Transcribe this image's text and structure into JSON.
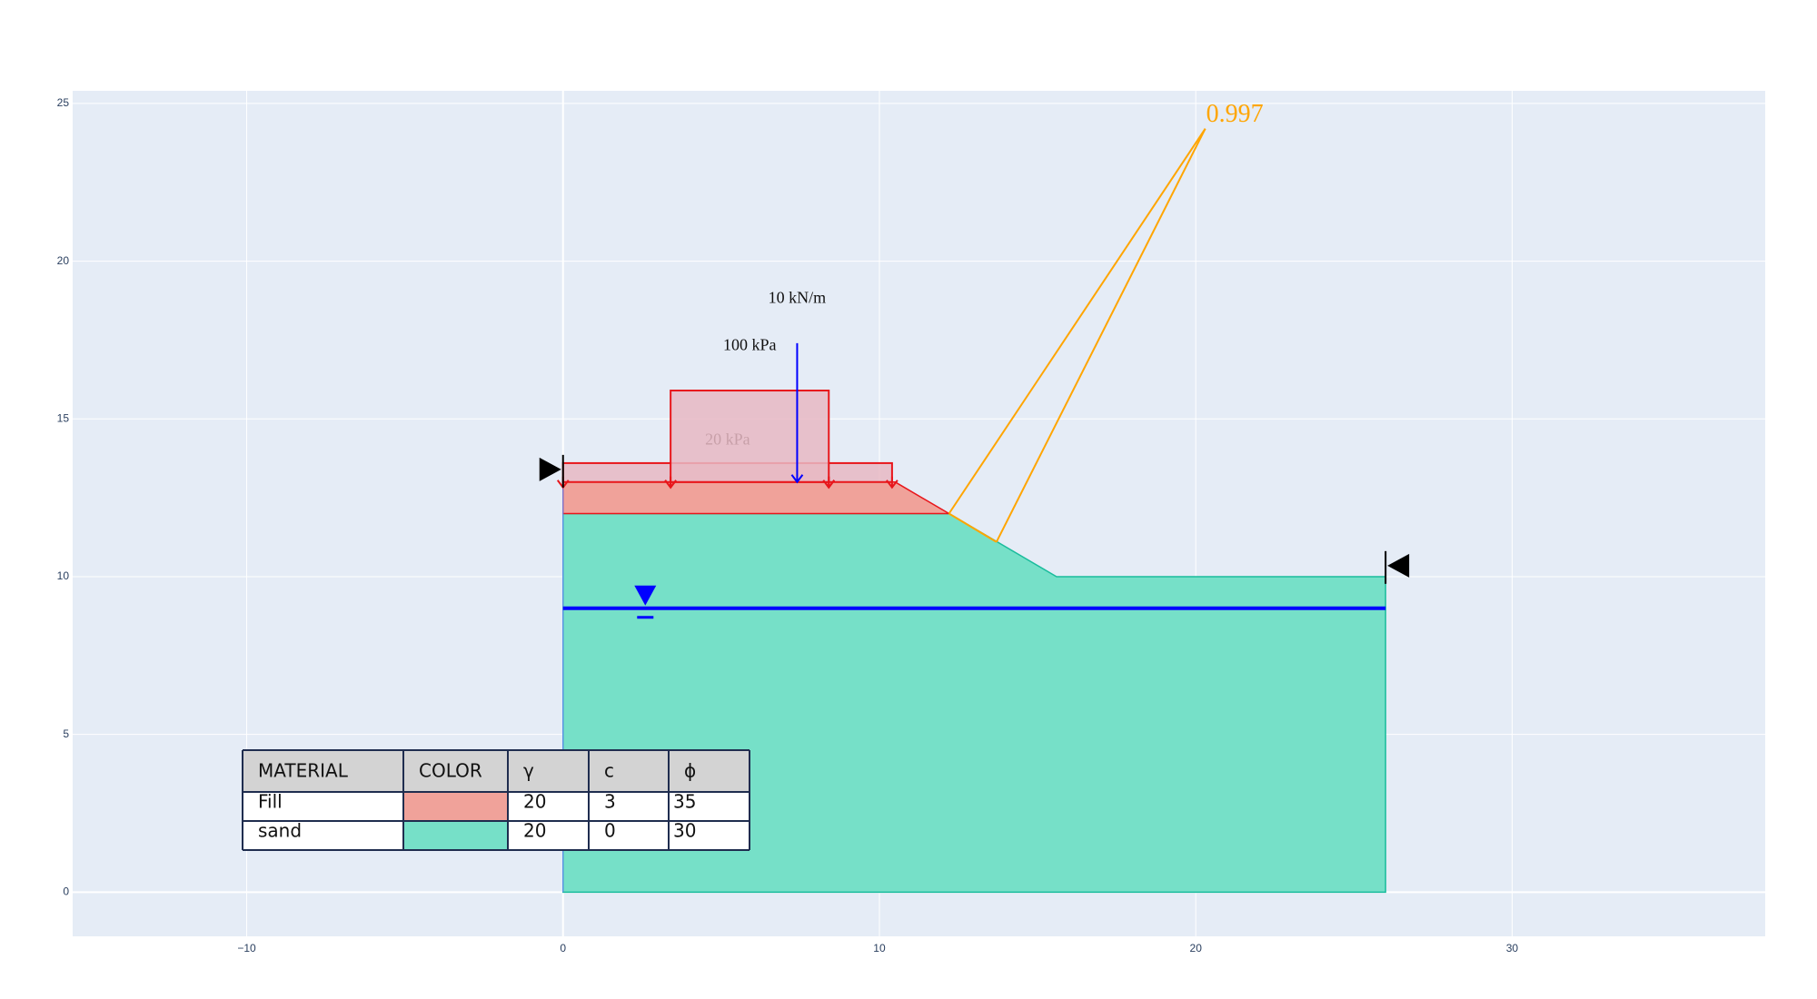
{
  "chart_data": {
    "type": "area",
    "title": "",
    "xlabel": "",
    "ylabel": "",
    "xlim": [
      -15.5,
      38
    ],
    "ylim": [
      -1.4,
      25.4
    ],
    "x_ticks": [
      -10,
      0,
      10,
      20,
      30
    ],
    "y_ticks": [
      0,
      5,
      10,
      15,
      20,
      25
    ],
    "x_tick_labels": [
      "−10",
      "0",
      "10",
      "20",
      "30"
    ],
    "y_tick_labels": [
      "0",
      "5",
      "10",
      "15",
      "20",
      "25"
    ],
    "grid": true,
    "colors": {
      "plot_bg": "#E5ECF6",
      "grid": "#ffffff",
      "fill": "#F0A29A",
      "sand": "#76E0C8",
      "sand_edge": "#1ABC9C",
      "load_red": "#E8161B",
      "load_fill": "#E8B8C3",
      "water": "#0000FF",
      "point_load": "#0000FF",
      "slip": "#FFA500",
      "table_border": "#1F2D4F",
      "table_header_bg": "#D3D3D3"
    },
    "layers": [
      {
        "name": "sand",
        "points": [
          [
            0,
            0
          ],
          [
            0,
            12
          ],
          [
            12.2,
            12
          ],
          [
            15.6,
            10
          ],
          [
            26,
            10
          ],
          [
            26,
            0
          ]
        ]
      },
      {
        "name": "Fill",
        "points": [
          [
            0,
            12
          ],
          [
            0,
            13
          ],
          [
            10.5,
            13
          ],
          [
            12.2,
            12
          ]
        ]
      }
    ],
    "water_table": {
      "y": 9,
      "x": [
        0,
        26
      ],
      "symbol_x": 2.6
    },
    "boundaries": [
      {
        "x": 0,
        "y": 13.4,
        "direction": "right"
      },
      {
        "x": 26,
        "y": 10.35,
        "direction": "left"
      }
    ],
    "distributed_loads": [
      {
        "label": "20 kPa",
        "x": [
          0,
          10.4
        ],
        "y_base": 13,
        "top": 13.6,
        "label_pos": [
          5.2,
          14.3
        ],
        "arrows_x": [
          0,
          3.4,
          8.4,
          10.4
        ]
      },
      {
        "label": "100 kPa",
        "x": [
          3.4,
          8.4
        ],
        "y_base": 13,
        "top": 15.9,
        "label_pos": [
          5.9,
          17.3
        ],
        "arrows_x": [
          3.4,
          8.4
        ]
      }
    ],
    "point_load": {
      "label": "10 kN/m",
      "x": 7.4,
      "y_top": 17.4,
      "y_base": 13,
      "label_pos": [
        7.4,
        18.8
      ]
    },
    "slip_surface": {
      "factor_of_safety": "0.997",
      "center": [
        20.3,
        24.2
      ],
      "entry": [
        12.2,
        12
      ],
      "exit": [
        13.7,
        11.1
      ],
      "label_pos": [
        20.3,
        24.6
      ]
    },
    "material_table": {
      "headers": [
        "MATERIAL",
        "COLOR",
        "γ",
        "c",
        "ϕ"
      ],
      "rows": [
        {
          "material": "Fill",
          "color": "#F0A29A",
          "gamma": "20",
          "c": "3",
          "phi": "35"
        },
        {
          "material": "sand",
          "color": "#76E0C8",
          "gamma": "20",
          "c": "0",
          "phi": "30"
        }
      ]
    }
  }
}
